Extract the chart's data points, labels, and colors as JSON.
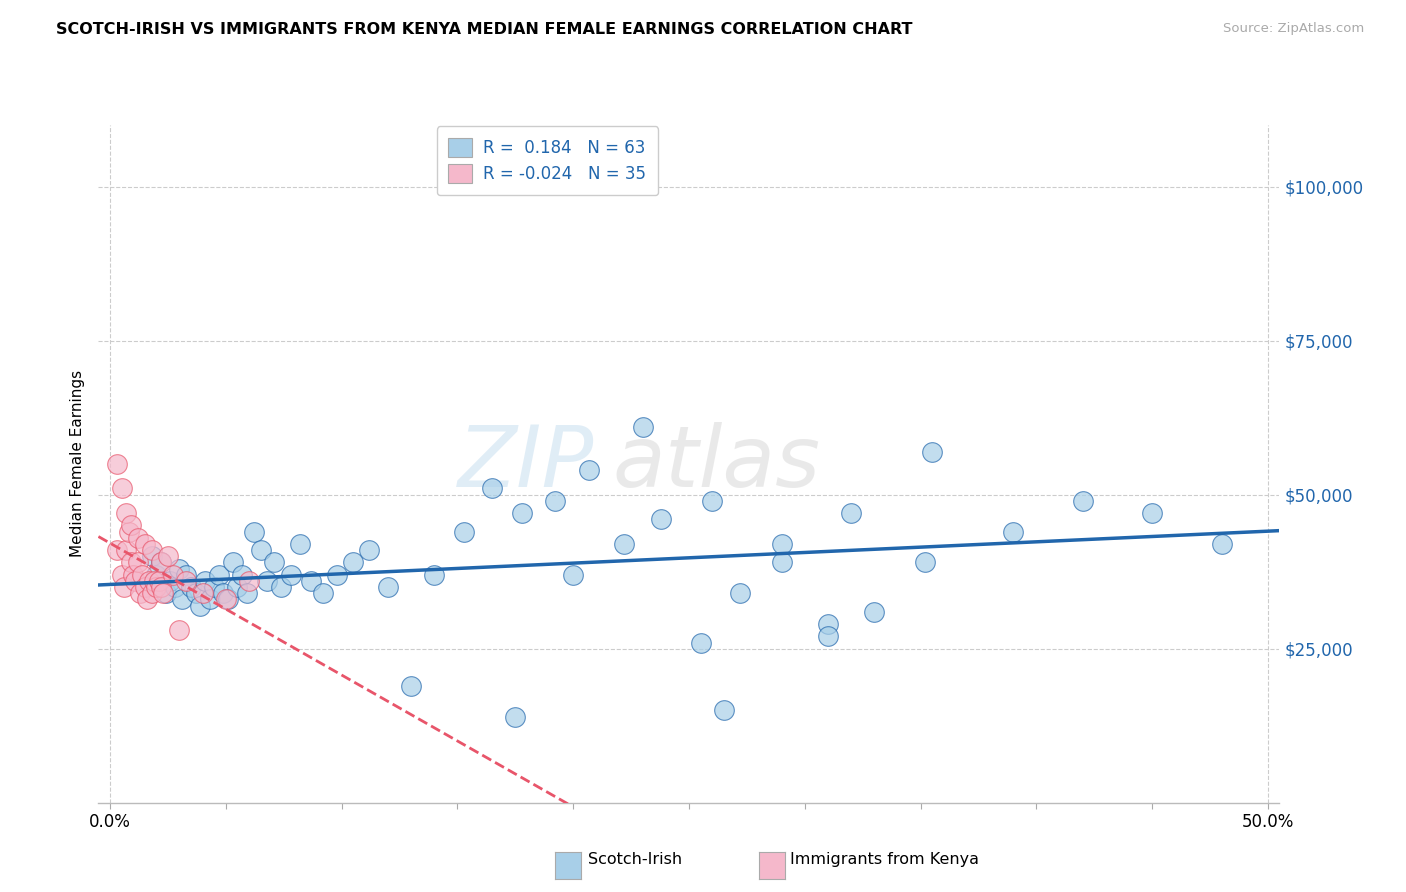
{
  "title": "SCOTCH-IRISH VS IMMIGRANTS FROM KENYA MEDIAN FEMALE EARNINGS CORRELATION CHART",
  "source": "Source: ZipAtlas.com",
  "ylabel": "Median Female Earnings",
  "xlim": [
    -0.005,
    0.505
  ],
  "ylim": [
    0,
    110000
  ],
  "yticks": [
    0,
    25000,
    50000,
    75000,
    100000
  ],
  "ytick_labels": [
    "",
    "$25,000",
    "$50,000",
    "$75,000",
    "$100,000"
  ],
  "xtick_left": "0.0%",
  "xtick_right": "50.0%",
  "legend_r1": "R =  0.184",
  "legend_n1": "N = 63",
  "legend_r2": "R = -0.024",
  "legend_n2": "N = 35",
  "color_blue": "#a8cfe8",
  "color_pink": "#f5b8cb",
  "color_blue_line": "#2166ac",
  "color_pink_line": "#e8556a",
  "watermark_zip": "ZIP",
  "watermark_atlas": "atlas",
  "background_color": "#ffffff",
  "grid_color": "#cccccc",
  "blue_scatter_x": [
    0.018,
    0.02,
    0.022,
    0.024,
    0.026,
    0.028,
    0.03,
    0.031,
    0.033,
    0.035,
    0.037,
    0.039,
    0.041,
    0.043,
    0.045,
    0.047,
    0.049,
    0.051,
    0.053,
    0.055,
    0.057,
    0.059,
    0.062,
    0.065,
    0.068,
    0.071,
    0.074,
    0.078,
    0.082,
    0.087,
    0.092,
    0.098,
    0.105,
    0.112,
    0.12,
    0.13,
    0.14,
    0.153,
    0.165,
    0.178,
    0.192,
    0.207,
    0.222,
    0.238,
    0.255,
    0.272,
    0.29,
    0.31,
    0.33,
    0.352,
    0.2,
    0.23,
    0.26,
    0.29,
    0.32,
    0.355,
    0.39,
    0.42,
    0.45,
    0.48,
    0.175,
    0.31,
    0.265
  ],
  "blue_scatter_y": [
    40000,
    37000,
    39000,
    34000,
    36000,
    35000,
    38000,
    33000,
    37000,
    35000,
    34000,
    32000,
    36000,
    33000,
    35000,
    37000,
    34000,
    33000,
    39000,
    35000,
    37000,
    34000,
    44000,
    41000,
    36000,
    39000,
    35000,
    37000,
    42000,
    36000,
    34000,
    37000,
    39000,
    41000,
    35000,
    19000,
    37000,
    44000,
    51000,
    47000,
    49000,
    54000,
    42000,
    46000,
    26000,
    34000,
    39000,
    29000,
    31000,
    39000,
    37000,
    61000,
    49000,
    42000,
    47000,
    57000,
    44000,
    49000,
    47000,
    42000,
    14000,
    27000,
    15000
  ],
  "pink_scatter_x": [
    0.003,
    0.005,
    0.006,
    0.007,
    0.008,
    0.009,
    0.01,
    0.011,
    0.012,
    0.013,
    0.014,
    0.015,
    0.016,
    0.017,
    0.018,
    0.019,
    0.02,
    0.021,
    0.022,
    0.023,
    0.003,
    0.005,
    0.007,
    0.009,
    0.012,
    0.015,
    0.018,
    0.022,
    0.027,
    0.033,
    0.04,
    0.05,
    0.06,
    0.025,
    0.03
  ],
  "pink_scatter_y": [
    41000,
    37000,
    35000,
    41000,
    44000,
    39000,
    37000,
    36000,
    39000,
    34000,
    37000,
    35000,
    33000,
    36000,
    34000,
    36000,
    35000,
    36000,
    35000,
    34000,
    55000,
    51000,
    47000,
    45000,
    43000,
    42000,
    41000,
    39000,
    37000,
    36000,
    34000,
    33000,
    36000,
    40000,
    28000
  ]
}
